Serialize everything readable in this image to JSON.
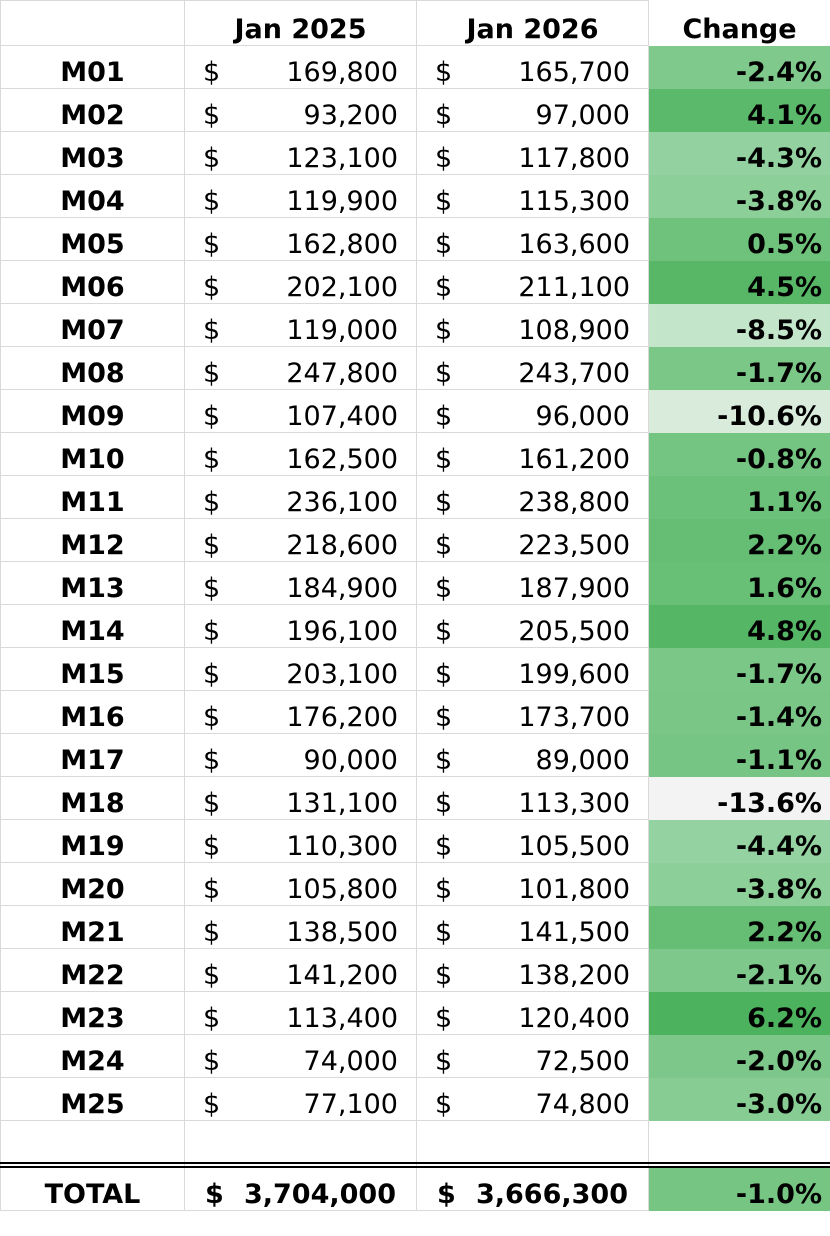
{
  "headers": {
    "code": "",
    "jan2025": "Jan 2025",
    "jan2026": "Jan 2026",
    "change": "Change"
  },
  "currency": "$",
  "colors": {
    "green_strong": "#57bb6a",
    "green_light": "#a9dcb2",
    "neutral": "#f3f3f3"
  },
  "rows": [
    {
      "code": "M01",
      "jan2025": "169,800",
      "jan2026": "165,700",
      "change": "-2.4%",
      "color": "#7ec98b"
    },
    {
      "code": "M02",
      "jan2025": "93,200",
      "jan2026": "97,000",
      "change": "4.1%",
      "color": "#5ab96a"
    },
    {
      "code": "M03",
      "jan2025": "123,100",
      "jan2026": "117,800",
      "change": "-4.3%",
      "color": "#93d2a0"
    },
    {
      "code": "M04",
      "jan2025": "119,900",
      "jan2026": "115,300",
      "change": "-3.8%",
      "color": "#8dcf99"
    },
    {
      "code": "M05",
      "jan2025": "162,800",
      "jan2026": "163,600",
      "change": "0.5%",
      "color": "#6ec27c"
    },
    {
      "code": "M06",
      "jan2025": "202,100",
      "jan2026": "211,100",
      "change": "4.5%",
      "color": "#57b767"
    },
    {
      "code": "M07",
      "jan2025": "119,000",
      "jan2026": "108,900",
      "change": "-8.5%",
      "color": "#c3e5ca"
    },
    {
      "code": "M08",
      "jan2025": "247,800",
      "jan2026": "243,700",
      "change": "-1.7%",
      "color": "#7bc788"
    },
    {
      "code": "M09",
      "jan2025": "107,400",
      "jan2026": "96,000",
      "change": "-10.6%",
      "color": "#d9ecdc"
    },
    {
      "code": "M10",
      "jan2025": "162,500",
      "jan2026": "161,200",
      "change": "-0.8%",
      "color": "#74c482"
    },
    {
      "code": "M11",
      "jan2025": "236,100",
      "jan2026": "238,800",
      "change": "1.1%",
      "color": "#6bc179"
    },
    {
      "code": "M12",
      "jan2025": "218,600",
      "jan2026": "223,500",
      "change": "2.2%",
      "color": "#65be73"
    },
    {
      "code": "M13",
      "jan2025": "184,900",
      "jan2026": "187,900",
      "change": "1.6%",
      "color": "#68bf76"
    },
    {
      "code": "M14",
      "jan2025": "196,100",
      "jan2026": "205,500",
      "change": "4.8%",
      "color": "#55b665"
    },
    {
      "code": "M15",
      "jan2025": "203,100",
      "jan2026": "199,600",
      "change": "-1.7%",
      "color": "#7bc788"
    },
    {
      "code": "M16",
      "jan2025": "176,200",
      "jan2026": "173,700",
      "change": "-1.4%",
      "color": "#79c686"
    },
    {
      "code": "M17",
      "jan2025": "90,000",
      "jan2026": "89,000",
      "change": "-1.1%",
      "color": "#77c584"
    },
    {
      "code": "M18",
      "jan2025": "131,100",
      "jan2026": "113,300",
      "change": "-13.6%",
      "color": "#f3f3f3"
    },
    {
      "code": "M19",
      "jan2025": "110,300",
      "jan2026": "105,500",
      "change": "-4.4%",
      "color": "#94d2a1"
    },
    {
      "code": "M20",
      "jan2025": "105,800",
      "jan2026": "101,800",
      "change": "-3.8%",
      "color": "#8dcf99"
    },
    {
      "code": "M21",
      "jan2025": "138,500",
      "jan2026": "141,500",
      "change": "2.2%",
      "color": "#65be73"
    },
    {
      "code": "M22",
      "jan2025": "141,200",
      "jan2026": "138,200",
      "change": "-2.1%",
      "color": "#7dc88a"
    },
    {
      "code": "M23",
      "jan2025": "113,400",
      "jan2026": "120,400",
      "change": "6.2%",
      "color": "#4cb25d"
    },
    {
      "code": "M24",
      "jan2025": "74,000",
      "jan2026": "72,500",
      "change": "-2.0%",
      "color": "#7cc789"
    },
    {
      "code": "M25",
      "jan2025": "77,100",
      "jan2026": "74,800",
      "change": "-3.0%",
      "color": "#86cc93"
    }
  ],
  "total": {
    "label": "TOTAL",
    "jan2025": "3,704,000",
    "jan2026": "3,666,300",
    "change": "-1.0%",
    "color": "#76c583"
  }
}
